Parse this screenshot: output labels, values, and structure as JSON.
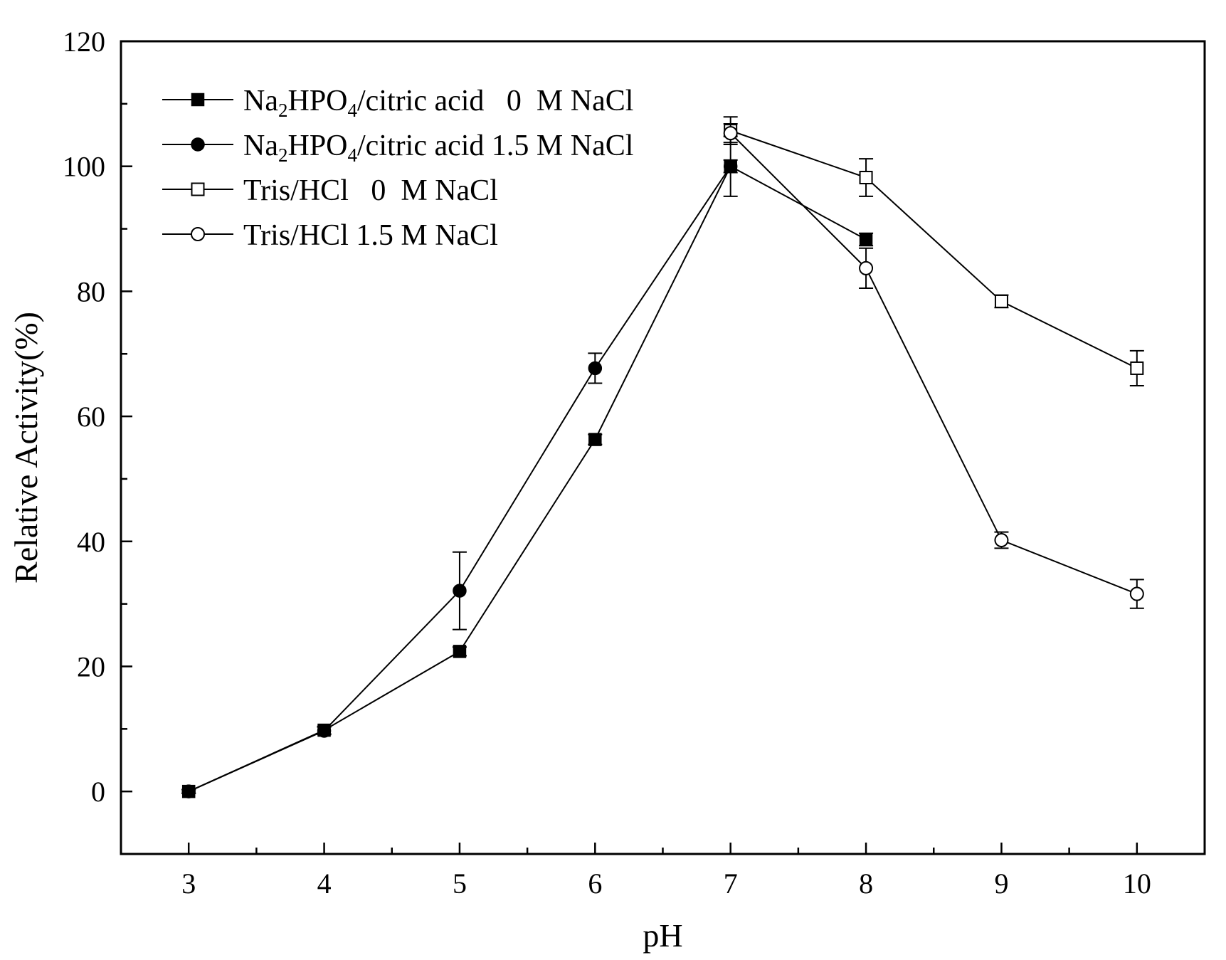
{
  "chart_data": {
    "type": "line",
    "xlabel": "pH",
    "ylabel": "Relative Activity(%)",
    "xlim": [
      2.5,
      10.5
    ],
    "ylim": [
      -10,
      120
    ],
    "xticks": [
      3,
      4,
      5,
      6,
      7,
      8,
      9,
      10
    ],
    "yticks": [
      0,
      20,
      40,
      60,
      80,
      100,
      120
    ],
    "grid": false,
    "legend_position": "top-left",
    "series": [
      {
        "name": "Na2HPO4/citric acid   0  M NaCl",
        "legend": {
          "pre": "Na",
          "sub1": "2",
          "mid": "HPO",
          "sub2": "4",
          "post": "/citric acid   0  M NaCl"
        },
        "marker": "square-filled",
        "x": [
          3,
          4,
          5,
          6,
          7,
          8
        ],
        "y": [
          0,
          9.8,
          22.4,
          56.3,
          100,
          88.3
        ],
        "err": [
          0.3,
          0.6,
          0.7,
          0.8,
          1.0,
          1.0
        ]
      },
      {
        "name": "Na2HPO4/citric acid 1.5 M NaCl",
        "legend": {
          "pre": "Na",
          "sub1": "2",
          "mid": "HPO",
          "sub2": "4",
          "post": "/citric acid 1.5 M NaCl"
        },
        "marker": "circle-filled",
        "x": [
          3,
          4,
          5,
          6,
          7
        ],
        "y": [
          0,
          9.7,
          32.1,
          67.7,
          100
        ],
        "err": [
          0.3,
          0.6,
          6.2,
          2.4,
          4.8
        ]
      },
      {
        "name": "Tris/HCl   0  M NaCl",
        "legend": {
          "pre": "Tris/HCl   0  M NaCl"
        },
        "marker": "square-open",
        "x": [
          7,
          8,
          9,
          10
        ],
        "y": [
          105.7,
          98.2,
          78.4,
          67.7
        ],
        "err": [
          2.2,
          3.0,
          1.0,
          2.8
        ]
      },
      {
        "name": "Tris/HCl 1.5 M NaCl",
        "legend": {
          "pre": "Tris/HCl 1.5 M NaCl"
        },
        "marker": "circle-open",
        "x": [
          7,
          8,
          9,
          10
        ],
        "y": [
          105.3,
          83.7,
          40.2,
          31.6
        ],
        "err": [
          1.5,
          3.2,
          1.3,
          2.3
        ]
      }
    ]
  }
}
